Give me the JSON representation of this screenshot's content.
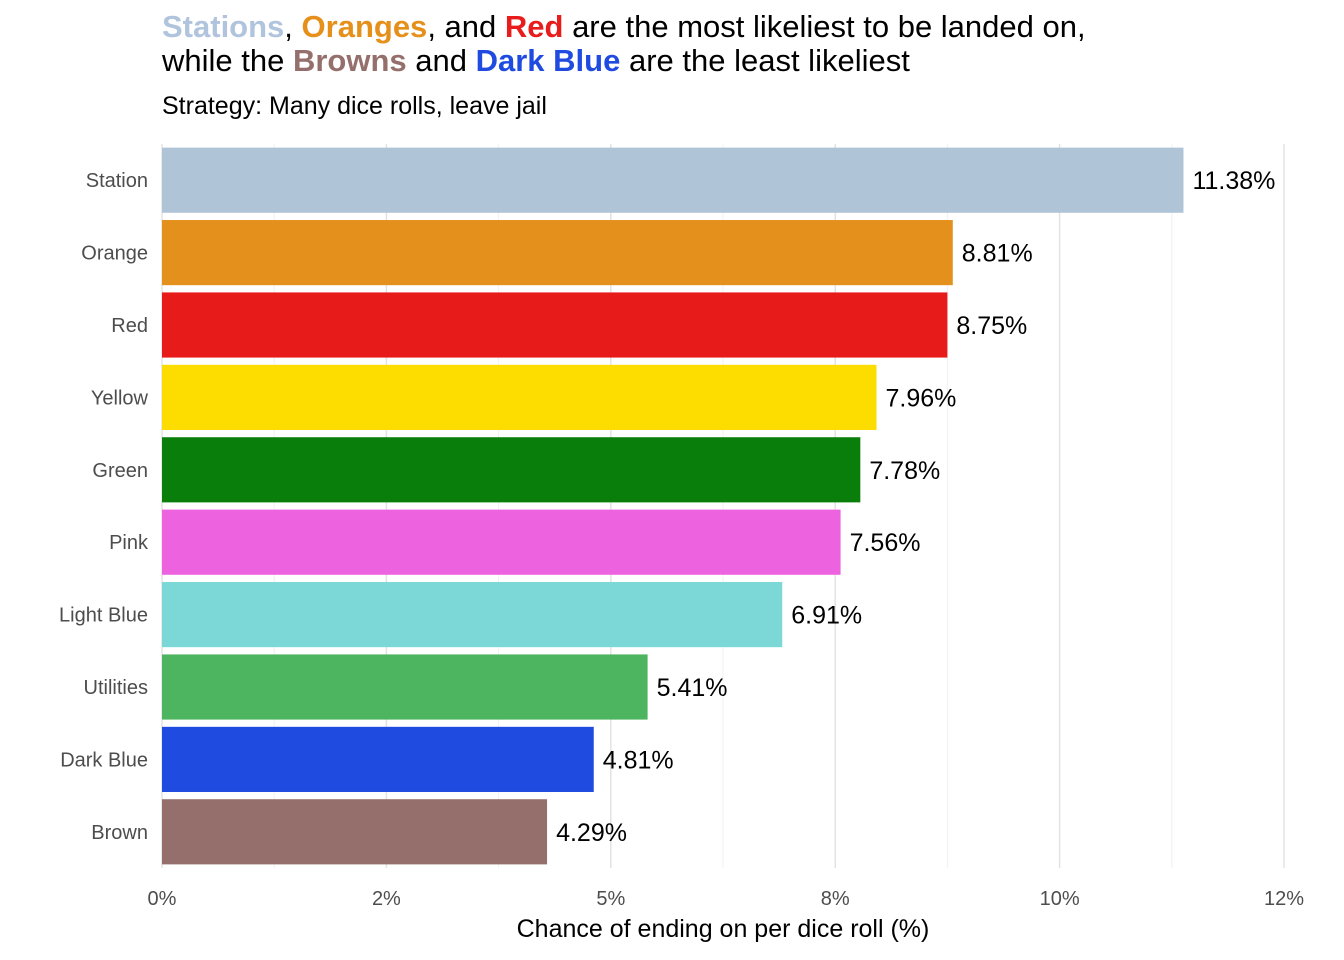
{
  "title": {
    "line1": [
      {
        "text": "Stations",
        "color": "#B0C4DE",
        "bold": true
      },
      {
        "text": ", ",
        "color": "#000000",
        "bold": false
      },
      {
        "text": "Oranges",
        "color": "#E6901C",
        "bold": true
      },
      {
        "text": ", and ",
        "color": "#000000",
        "bold": false
      },
      {
        "text": "Red",
        "color": "#E81C1C",
        "bold": true
      },
      {
        "text": " are the most likeliest to be landed on,",
        "color": "#000000",
        "bold": false
      }
    ],
    "line2": [
      {
        "text": "while the ",
        "color": "#000000",
        "bold": false
      },
      {
        "text": "Browns",
        "color": "#956F6B",
        "bold": true
      },
      {
        "text": " and ",
        "color": "#000000",
        "bold": false
      },
      {
        "text": "Dark Blue",
        "color": "#1F4BE0",
        "bold": true
      },
      {
        "text": " are the least likeliest",
        "color": "#000000",
        "bold": false
      }
    ]
  },
  "subtitle": "Strategy: Many dice rolls, leave jail",
  "chart_data": {
    "type": "bar",
    "orientation": "horizontal",
    "categories": [
      "Station",
      "Orange",
      "Red",
      "Yellow",
      "Green",
      "Pink",
      "Light Blue",
      "Utilities",
      "Dark Blue",
      "Brown"
    ],
    "values": [
      11.38,
      8.81,
      8.75,
      7.96,
      7.78,
      7.56,
      6.91,
      5.41,
      4.81,
      4.29
    ],
    "data_labels": [
      "11.38%",
      "8.81%",
      "8.75%",
      "7.96%",
      "7.78%",
      "7.56%",
      "6.91%",
      "5.41%",
      "4.81%",
      "4.29%"
    ],
    "colors": [
      "#B0C4D8",
      "#E3901C",
      "#E81B1B",
      "#FDDC00",
      "#0A7E0A",
      "#ED62DF",
      "#7BD8D7",
      "#4DB55F",
      "#1F4BE0",
      "#956F6B"
    ],
    "xlim": [
      0,
      12.5
    ],
    "x_ticks": [
      0,
      2.5,
      5,
      7.5,
      10,
      12.5
    ],
    "x_tick_labels": [
      "0%",
      "2%",
      "5%",
      "8%",
      "10%",
      "12%"
    ],
    "xlabel": "Chance of ending on per dice roll (%)",
    "ylabel": "",
    "grid": true
  }
}
